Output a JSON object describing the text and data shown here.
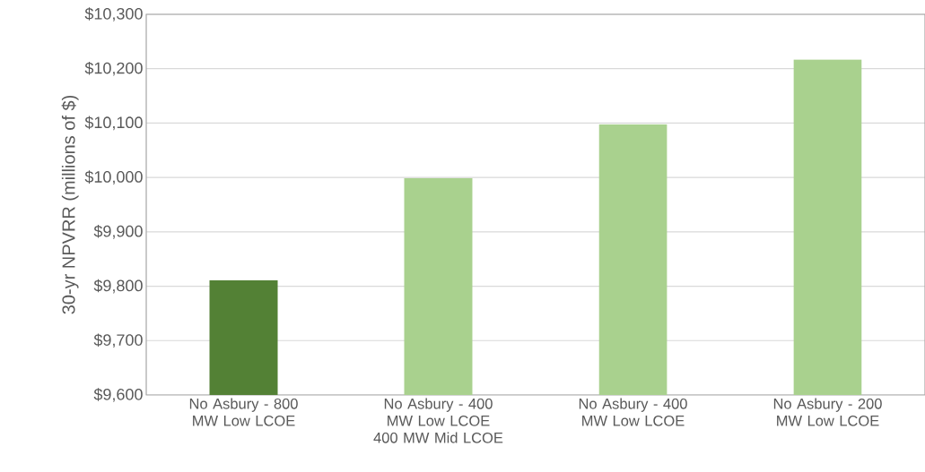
{
  "chart_data": {
    "type": "bar",
    "ylabel": "30-yr NPVRR (millions of $)",
    "categories": [
      "No Asbury - 800 MW Low LCOE",
      "No Asbury - 400 MW Low LCOE 400 MW Mid LCOE",
      "No Asbury - 400 MW Low LCOE",
      "No Asbury - 200 MW Low LCOE"
    ],
    "values": [
      9811,
      9999,
      10098,
      10217
    ],
    "colors": [
      "#538135",
      "#a9d18e",
      "#a9d18e",
      "#a9d18e"
    ],
    "ylim": [
      9600,
      10300
    ],
    "yticks": [
      {
        "value": 9600,
        "label": "$9,600"
      },
      {
        "value": 9700,
        "label": "$9,700"
      },
      {
        "value": 9800,
        "label": "$9,800"
      },
      {
        "value": 9900,
        "label": "$9,900"
      },
      {
        "value": 10000,
        "label": "$10,000"
      },
      {
        "value": 10100,
        "label": "$10,100"
      },
      {
        "value": 10200,
        "label": "$10,200"
      },
      {
        "value": 10300,
        "label": "$10,300"
      }
    ],
    "grid": "y"
  }
}
